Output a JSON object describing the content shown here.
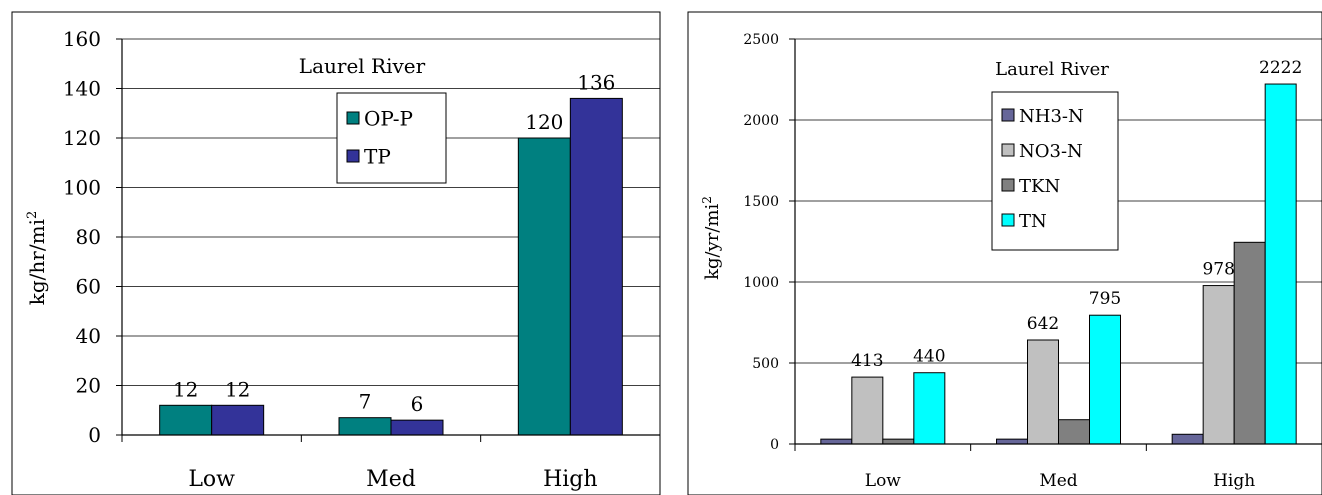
{
  "chart_data": [
    {
      "type": "bar",
      "title": "Laurel River",
      "ylabel": "kg/hr/mi",
      "ylabel_sup": "2",
      "categories": [
        "Low",
        "Med",
        "High"
      ],
      "ylim": [
        0,
        160
      ],
      "yticks": [
        0,
        20,
        40,
        60,
        80,
        100,
        120,
        140,
        160
      ],
      "grid": true,
      "legend": "top-center",
      "series": [
        {
          "name": "OP-P",
          "color": "#008080",
          "values": [
            12,
            7,
            120
          ],
          "labels": [
            "12",
            "7",
            "120"
          ]
        },
        {
          "name": "TP",
          "color": "#333399",
          "values": [
            12,
            6,
            136
          ],
          "labels": [
            "12",
            "6",
            "136"
          ]
        }
      ]
    },
    {
      "type": "bar",
      "title": "Laurel River",
      "ylabel": "kg/yr/mi",
      "ylabel_sup": "2",
      "categories": [
        "Low",
        "Med",
        "High"
      ],
      "ylim": [
        0,
        2500
      ],
      "yticks": [
        0,
        500,
        1000,
        1500,
        2000,
        2500
      ],
      "grid": true,
      "legend": "top-center",
      "series": [
        {
          "name": "NH3-N",
          "color": "#666699",
          "values": [
            30,
            30,
            60
          ],
          "labels": [
            "",
            "",
            ""
          ]
        },
        {
          "name": "NO3-N",
          "color": "#c0c0c0",
          "values": [
            413,
            642,
            978
          ],
          "labels": [
            "413",
            "642",
            "978"
          ]
        },
        {
          "name": "TKN",
          "color": "#808080",
          "values": [
            30,
            150,
            1245
          ],
          "labels": [
            "",
            "",
            ""
          ]
        },
        {
          "name": "TN",
          "color": "#00ffff",
          "values": [
            440,
            795,
            2222
          ],
          "labels": [
            "440",
            "795",
            "2222"
          ]
        }
      ]
    }
  ]
}
